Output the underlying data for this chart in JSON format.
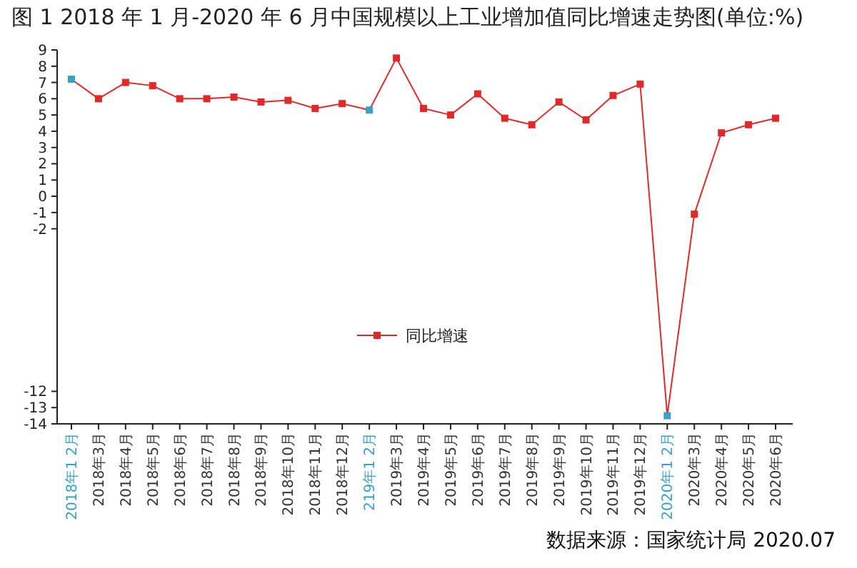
{
  "chart_data": {
    "type": "line",
    "title": "图 1 2018 年 1 月-2020 年 6 月中国规模以上工业增加值同比增速走势图(单位:%)",
    "categories": [
      "2018年1 2月",
      "2018年3月",
      "2018年4月",
      "2018年5月",
      "2018年6月",
      "2018年7月",
      "2018年8月",
      "2018年9月",
      "2018年10月",
      "2018年11月",
      "2018年12月",
      "219年1 2月",
      "2019年3月",
      "2019年4月",
      "2019年5月",
      "2019年6月",
      "2019年7月",
      "2019年8月",
      "2019年9月",
      "2019年10月",
      "2019年11月",
      "2019年12月",
      "2020年1 2月",
      "2020年3月",
      "2020年4月",
      "2020年5月",
      "2020年6月"
    ],
    "series": [
      {
        "name": "同比增速",
        "color": "#e02a2a",
        "colors": [
          "#3aa0c8",
          "#e02a2a",
          "#e02a2a",
          "#e02a2a",
          "#e02a2a",
          "#e02a2a",
          "#e02a2a",
          "#e02a2a",
          "#e02a2a",
          "#e02a2a",
          "#e02a2a",
          "#3aa0c8",
          "#e02a2a",
          "#e02a2a",
          "#e02a2a",
          "#e02a2a",
          "#e02a2a",
          "#e02a2a",
          "#e02a2a",
          "#e02a2a",
          "#e02a2a",
          "#e02a2a",
          "#3aa0c8",
          "#e02a2a",
          "#e02a2a",
          "#e02a2a",
          "#e02a2a"
        ],
        "values": [
          7.2,
          6.0,
          7.0,
          6.8,
          6.0,
          6.0,
          6.1,
          5.8,
          5.9,
          5.4,
          5.7,
          5.3,
          8.5,
          5.4,
          5.0,
          6.3,
          4.8,
          4.4,
          5.8,
          4.7,
          6.2,
          6.9,
          -13.5,
          -1.1,
          3.9,
          4.4,
          4.8
        ]
      }
    ],
    "ylim": [
      -14,
      9
    ],
    "yticks": [
      9,
      8,
      7,
      6,
      5,
      4,
      3,
      2,
      1,
      0,
      -1,
      -2,
      -12,
      -13,
      -14
    ],
    "marker": "square",
    "legend": "bottom",
    "annotations": [
      "数据来源：国家统计局 2020.07"
    ]
  }
}
